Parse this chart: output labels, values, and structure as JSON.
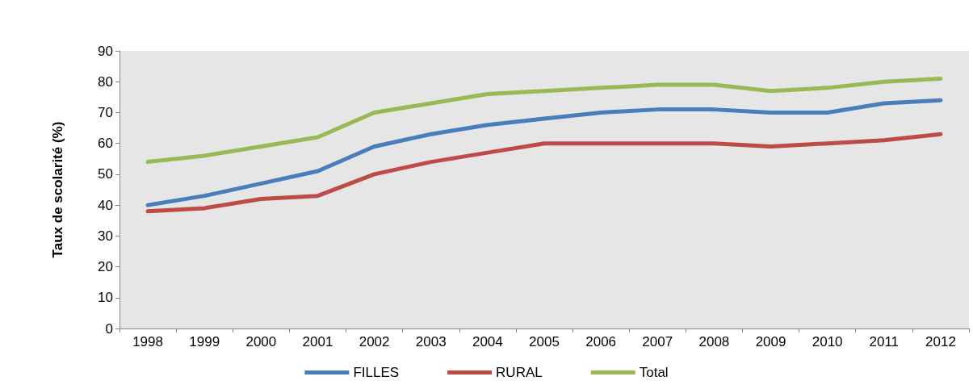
{
  "chart_data": {
    "type": "line",
    "ylabel": "Taux de scolarité (%)",
    "categories": [
      "1998",
      "1999",
      "2000",
      "2001",
      "2002",
      "2003",
      "2004",
      "2005",
      "2006",
      "2007",
      "2008",
      "2009",
      "2010",
      "2011",
      "2012"
    ],
    "series": [
      {
        "name": "FILLES",
        "color": "#4a7ebb",
        "values": [
          40,
          43,
          47,
          51,
          59,
          63,
          66,
          68,
          70,
          71,
          71,
          70,
          70,
          73,
          74
        ]
      },
      {
        "name": "RURAL",
        "color": "#be4b48",
        "values": [
          38,
          39,
          42,
          43,
          50,
          54,
          57,
          60,
          60,
          60,
          60,
          59,
          60,
          61,
          63
        ]
      },
      {
        "name": "Total",
        "color": "#98b954",
        "values": [
          54,
          56,
          59,
          62,
          70,
          73,
          76,
          77,
          78,
          79,
          79,
          77,
          78,
          80,
          81
        ]
      }
    ],
    "ylim": [
      0,
      90
    ],
    "yticks": [
      0,
      10,
      20,
      30,
      40,
      50,
      60,
      70,
      80,
      90
    ],
    "grid": false,
    "legend": "bottom",
    "marker": "none",
    "line_style": "solid"
  }
}
